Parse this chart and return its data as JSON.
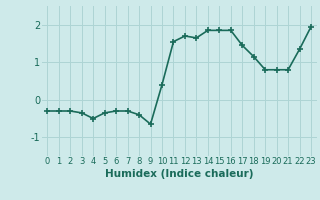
{
  "x": [
    0,
    1,
    2,
    3,
    4,
    5,
    6,
    7,
    8,
    9,
    10,
    11,
    12,
    13,
    14,
    15,
    16,
    17,
    18,
    19,
    20,
    21,
    22,
    23
  ],
  "y": [
    -0.3,
    -0.3,
    -0.3,
    -0.35,
    -0.5,
    -0.35,
    -0.3,
    -0.3,
    -0.4,
    -0.65,
    0.4,
    1.55,
    1.7,
    1.65,
    1.85,
    1.85,
    1.85,
    1.45,
    1.15,
    0.8,
    0.8,
    0.8,
    1.35,
    1.95
  ],
  "line_color": "#1a6b5a",
  "marker": "+",
  "marker_size": 4,
  "marker_edge_width": 1.2,
  "bg_color": "#ceeaea",
  "grid_color": "#add4d4",
  "xlabel": "Humidex (Indice chaleur)",
  "xlim": [
    -0.5,
    23.5
  ],
  "ylim": [
    -1.5,
    2.5
  ],
  "yticks": [
    -1,
    0,
    1,
    2
  ],
  "xticks": [
    0,
    1,
    2,
    3,
    4,
    5,
    6,
    7,
    8,
    9,
    10,
    11,
    12,
    13,
    14,
    15,
    16,
    17,
    18,
    19,
    20,
    21,
    22,
    23
  ],
  "tick_color": "#1a6b5a",
  "label_color": "#1a6b5a",
  "tick_fontsize": 6.0,
  "xlabel_fontsize": 7.5,
  "line_width": 1.2
}
